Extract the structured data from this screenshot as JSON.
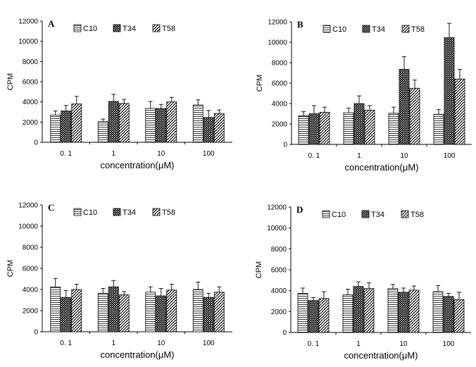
{
  "chart_data": [
    {
      "type": "bar",
      "panel": "A",
      "categories": [
        "0. 1",
        "1",
        "10",
        "100"
      ],
      "series": [
        {
          "name": "C10",
          "values": [
            2700,
            2050,
            3350,
            3700
          ],
          "errors": [
            400,
            250,
            700,
            500
          ]
        },
        {
          "name": "T34",
          "values": [
            3100,
            4050,
            3350,
            2450
          ],
          "errors": [
            550,
            700,
            400,
            700
          ]
        },
        {
          "name": "T58",
          "values": [
            3800,
            3850,
            4000,
            2850
          ],
          "errors": [
            750,
            400,
            450,
            350
          ]
        }
      ],
      "ylabel": "CPM",
      "xlabel": "concentration(μM)",
      "ylim": [
        0,
        12000
      ],
      "yticks": [
        "0",
        "2000",
        "4000",
        "6000",
        "8000",
        "10000",
        "12000"
      ],
      "legend": "top"
    },
    {
      "type": "bar",
      "panel": "B",
      "categories": [
        "0. 1",
        "1",
        "10",
        "100"
      ],
      "series": [
        {
          "name": "C10",
          "values": [
            2800,
            3100,
            3050,
            2950
          ],
          "errors": [
            400,
            450,
            600,
            450
          ]
        },
        {
          "name": "T34",
          "values": [
            3000,
            4000,
            7350,
            10450
          ],
          "errors": [
            800,
            750,
            1250,
            1400
          ]
        },
        {
          "name": "T58",
          "values": [
            3150,
            3350,
            5500,
            6400
          ],
          "errors": [
            500,
            450,
            800,
            950
          ]
        }
      ],
      "ylabel": "CPM",
      "xlabel": "concentration(μM)",
      "ylim": [
        0,
        12000
      ],
      "yticks": [
        "0",
        "2000",
        "4000",
        "6000",
        "8000",
        "10000",
        "12000"
      ],
      "legend": "top"
    },
    {
      "type": "bar",
      "panel": "C",
      "categories": [
        "0. 1",
        "1",
        "10",
        "100"
      ],
      "series": [
        {
          "name": "C10",
          "values": [
            4250,
            3650,
            3750,
            4000
          ],
          "errors": [
            800,
            450,
            500,
            700
          ]
        },
        {
          "name": "T34",
          "values": [
            3250,
            4250,
            3400,
            3250
          ],
          "errors": [
            650,
            600,
            700,
            400
          ]
        },
        {
          "name": "T58",
          "values": [
            4000,
            3500,
            3950,
            3750
          ],
          "errors": [
            500,
            300,
            550,
            500
          ]
        }
      ],
      "ylabel": "CPM",
      "xlabel": "concentration(μM)",
      "ylim": [
        0,
        12000
      ],
      "yticks": [
        "0",
        "2000",
        "4000",
        "6000",
        "8000",
        "10000",
        "12000"
      ],
      "legend": "top"
    },
    {
      "type": "bar",
      "panel": "D",
      "categories": [
        "0. 1",
        "1",
        "10",
        "100"
      ],
      "series": [
        {
          "name": "C10",
          "values": [
            3750,
            3600,
            4200,
            3900
          ],
          "errors": [
            500,
            550,
            400,
            600
          ]
        },
        {
          "name": "T34",
          "values": [
            3050,
            4400,
            3850,
            3450
          ],
          "errors": [
            300,
            450,
            400,
            300
          ]
        },
        {
          "name": "T58",
          "values": [
            3250,
            4200,
            4050,
            3150
          ],
          "errors": [
            650,
            550,
            400,
            700
          ]
        }
      ],
      "ylabel": "CPM",
      "xlabel": "concentration(μM)",
      "ylim": [
        0,
        12000
      ],
      "yticks": [
        "0",
        "2000",
        "4000",
        "6000",
        "8000",
        "10000",
        "12000"
      ],
      "legend": "top"
    }
  ]
}
